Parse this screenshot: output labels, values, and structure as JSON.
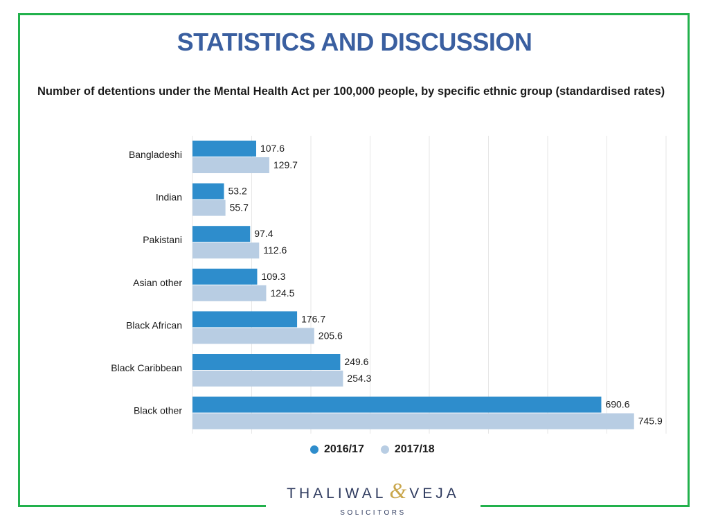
{
  "slide": {
    "title": "STATISTICS AND DISCUSSION"
  },
  "logo": {
    "left_word": "THALIWAL",
    "ampersand": "&",
    "right_word": "VEJA",
    "subtitle": "SOLICITORS"
  },
  "colors": {
    "frame": "#22b14c",
    "title": "#3a5fa0",
    "series_2016": "#2e8dcc",
    "series_2017": "#b8cde3"
  },
  "chart_data": {
    "type": "bar",
    "orientation": "horizontal",
    "title": "Number of detentions under the Mental Health Act per 100,000 people, by specific ethnic group (standardised rates)",
    "categories": [
      "Bangladeshi",
      "Indian",
      "Pakistani",
      "Asian other",
      "Black African",
      "Black Caribbean",
      "Black other"
    ],
    "series": [
      {
        "name": "2016/17",
        "color": "#2e8dcc",
        "values": [
          107.6,
          53.2,
          97.4,
          109.3,
          176.7,
          249.6,
          690.6
        ]
      },
      {
        "name": "2017/18",
        "color": "#b8cde3",
        "values": [
          129.7,
          55.7,
          112.6,
          124.5,
          205.6,
          254.3,
          745.9
        ]
      }
    ],
    "xlim": [
      0,
      800
    ],
    "grid": true,
    "legend_position": "bottom"
  }
}
